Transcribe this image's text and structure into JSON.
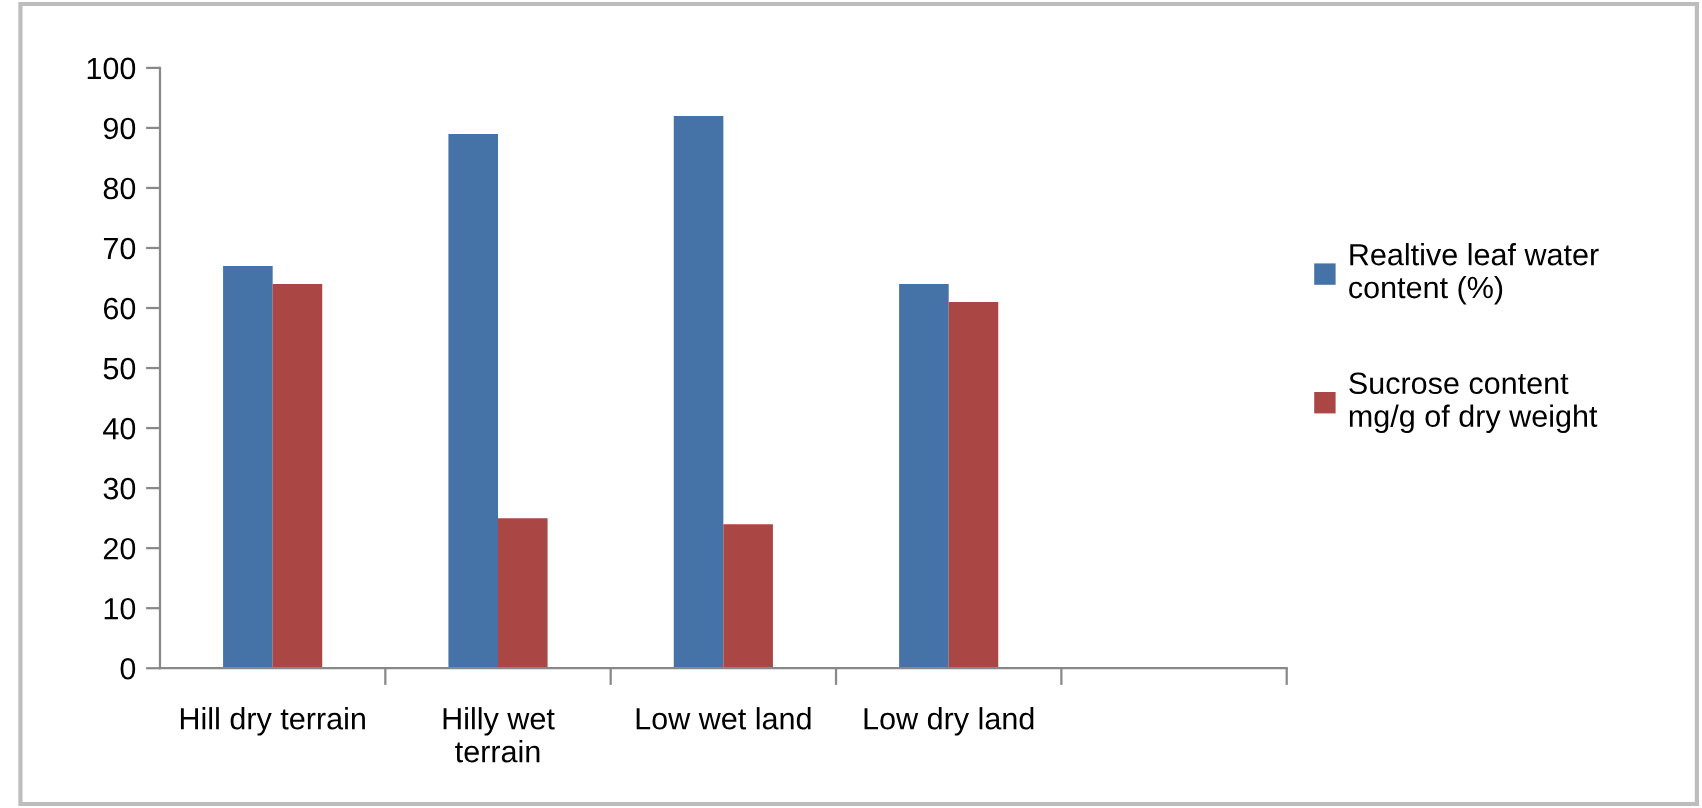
{
  "chart_data": {
    "type": "bar",
    "categories": [
      "Hill dry terrain",
      "Hilly wet terrain",
      "Low wet land",
      "Low dry land",
      null
    ],
    "series": [
      {
        "name": "Realtive leaf water content (%)",
        "color": "#4572a7",
        "values": [
          67,
          89,
          92,
          64,
          null
        ]
      },
      {
        "name": "Sucrose content mg/g of dry weight",
        "color": "#aa4643",
        "values": [
          64,
          25,
          24,
          61,
          null
        ]
      }
    ],
    "ylim": [
      0,
      100
    ],
    "yticks": [
      0,
      10,
      20,
      30,
      40,
      50,
      60,
      70,
      80,
      90,
      100
    ],
    "grid": false,
    "legend": "right"
  }
}
